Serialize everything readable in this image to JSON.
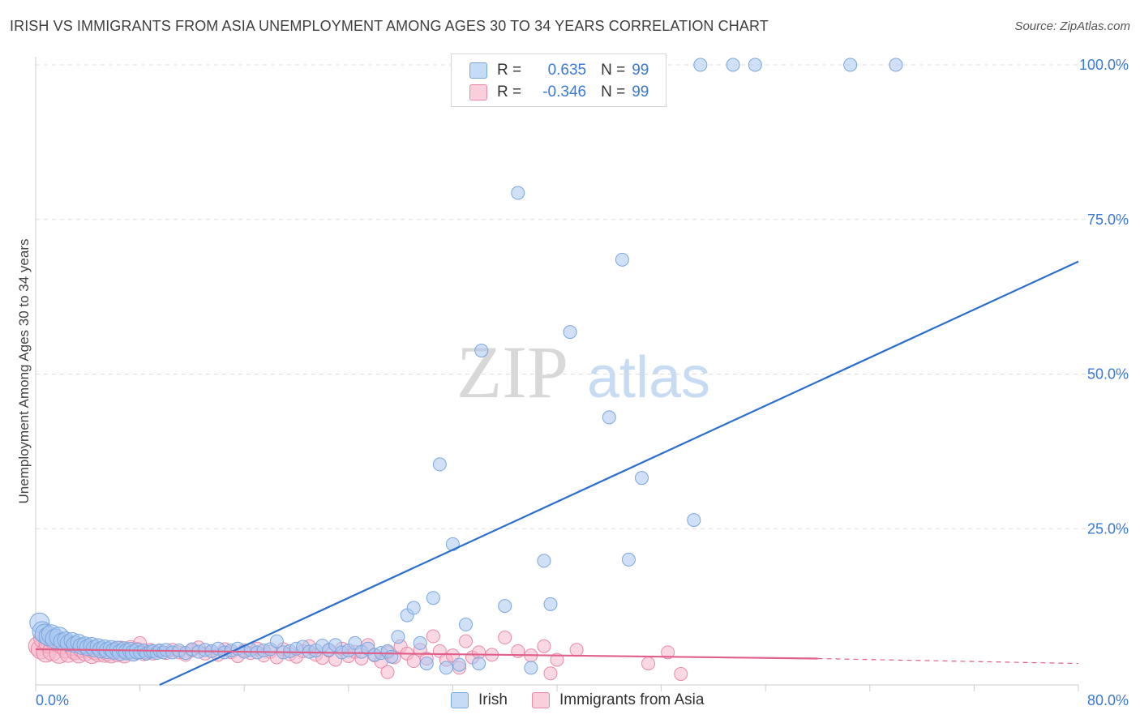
{
  "header": {
    "title": "IRISH VS IMMIGRANTS FROM ASIA UNEMPLOYMENT AMONG AGES 30 TO 34 YEARS CORRELATION CHART",
    "source": "Source: ZipAtlas.com"
  },
  "watermark": {
    "zip": "ZIP",
    "atlas": "atlas"
  },
  "legend": {
    "r_label": "R =",
    "n_label": "N =",
    "rows": [
      {
        "r": "0.635",
        "n": "99"
      },
      {
        "r": "-0.346",
        "n": "99"
      }
    ]
  },
  "colors": {
    "blue_fill": "#aac8f0",
    "blue_stroke": "#7aa6de",
    "blue_line": "#2a6fcf",
    "pink_fill": "#f6b8cc",
    "pink_stroke": "#e88aa8",
    "pink_line": "#e0608a",
    "tick_label": "#3a78d6",
    "grid": "#dddddd"
  },
  "chart_data": {
    "type": "scatter",
    "ylabel": "Unemployment Among Ages 30 to 34 years",
    "xlim": [
      0,
      80
    ],
    "ylim": [
      0,
      104
    ],
    "x_tick_labels": [
      {
        "value": 0,
        "label": "0.0%"
      },
      {
        "value": 80,
        "label": "80.0%"
      }
    ],
    "y_tick_labels": [
      {
        "value": 25,
        "label": "25.0%"
      },
      {
        "value": 50,
        "label": "50.0%"
      },
      {
        "value": 75,
        "label": "75.0%"
      },
      {
        "value": 100,
        "label": "100.0%"
      }
    ],
    "grid": true,
    "legend_position": "bottom",
    "series": [
      {
        "name": "Irish",
        "color": "#aac8f0",
        "r": 0.635,
        "n": 99,
        "trend": {
          "x": [
            0,
            80
          ],
          "y": [
            -9.5,
            68.2
          ]
        },
        "points": [
          [
            0.3,
            9.8
          ],
          [
            0.5,
            8.4
          ],
          [
            0.7,
            8.0
          ],
          [
            1.0,
            7.6
          ],
          [
            1.2,
            7.9
          ],
          [
            1.5,
            7.2
          ],
          [
            1.8,
            7.5
          ],
          [
            2.0,
            6.8
          ],
          [
            2.3,
            7.0
          ],
          [
            2.5,
            6.5
          ],
          [
            2.8,
            6.9
          ],
          [
            3.0,
            6.3
          ],
          [
            3.3,
            6.6
          ],
          [
            3.5,
            6.0
          ],
          [
            3.8,
            6.2
          ],
          [
            4.0,
            5.8
          ],
          [
            4.3,
            6.1
          ],
          [
            4.5,
            5.6
          ],
          [
            4.8,
            5.9
          ],
          [
            5.0,
            5.4
          ],
          [
            5.3,
            5.7
          ],
          [
            5.5,
            5.3
          ],
          [
            5.8,
            5.6
          ],
          [
            6.0,
            5.2
          ],
          [
            6.3,
            5.5
          ],
          [
            6.5,
            5.0
          ],
          [
            6.8,
            5.4
          ],
          [
            7.0,
            5.1
          ],
          [
            7.3,
            5.3
          ],
          [
            7.5,
            4.9
          ],
          [
            7.8,
            5.2
          ],
          [
            8.0,
            5.0
          ],
          [
            8.3,
            5.3
          ],
          [
            8.5,
            4.8
          ],
          [
            8.8,
            5.1
          ],
          [
            9.0,
            5.2
          ],
          [
            9.3,
            4.9
          ],
          [
            9.5,
            5.3
          ],
          [
            9.8,
            5.0
          ],
          [
            10.0,
            5.4
          ],
          [
            10.5,
            5.0
          ],
          [
            11.0,
            5.3
          ],
          [
            11.5,
            4.9
          ],
          [
            12.0,
            5.5
          ],
          [
            12.5,
            5.1
          ],
          [
            13.0,
            5.4
          ],
          [
            13.5,
            5.2
          ],
          [
            14.0,
            5.6
          ],
          [
            14.5,
            5.0
          ],
          [
            15.0,
            5.3
          ],
          [
            15.5,
            5.6
          ],
          [
            16.0,
            5.1
          ],
          [
            16.5,
            5.4
          ],
          [
            17.0,
            5.0
          ],
          [
            17.5,
            5.3
          ],
          [
            18.0,
            5.5
          ],
          [
            18.5,
            6.8
          ],
          [
            19.0,
            5.0
          ],
          [
            19.5,
            5.2
          ],
          [
            20.0,
            5.6
          ],
          [
            20.5,
            5.9
          ],
          [
            21.0,
            5.1
          ],
          [
            21.5,
            5.3
          ],
          [
            22.0,
            6.1
          ],
          [
            22.5,
            5.4
          ],
          [
            23.0,
            6.2
          ],
          [
            23.5,
            5.0
          ],
          [
            24.0,
            5.3
          ],
          [
            24.5,
            6.5
          ],
          [
            25.0,
            5.1
          ],
          [
            25.5,
            5.6
          ],
          [
            26.0,
            4.6
          ],
          [
            26.5,
            4.9
          ],
          [
            27.0,
            5.2
          ],
          [
            27.3,
            4.3
          ],
          [
            27.8,
            7.5
          ],
          [
            28.5,
            11.0
          ],
          [
            29.0,
            12.2
          ],
          [
            29.5,
            6.5
          ],
          [
            30.0,
            3.2
          ],
          [
            30.5,
            13.8
          ],
          [
            31.5,
            2.5
          ],
          [
            32.5,
            3.0
          ],
          [
            33.0,
            9.5
          ],
          [
            34.0,
            3.2
          ],
          [
            36.0,
            12.5
          ],
          [
            38.0,
            2.5
          ],
          [
            39.5,
            12.8
          ],
          [
            39.0,
            19.8
          ],
          [
            31.0,
            35.4
          ],
          [
            32.0,
            22.5
          ],
          [
            34.2,
            53.8
          ],
          [
            41.0,
            56.8
          ],
          [
            45.0,
            68.5
          ],
          [
            44.0,
            43.0
          ],
          [
            46.5,
            33.2
          ],
          [
            50.5,
            26.4
          ],
          [
            45.5,
            20.0
          ],
          [
            37.0,
            79.3
          ]
        ],
        "top_points": [
          [
            37.3,
            100
          ],
          [
            51.0,
            100
          ],
          [
            53.5,
            100
          ],
          [
            55.2,
            100
          ],
          [
            62.5,
            100
          ],
          [
            66.0,
            100
          ]
        ]
      },
      {
        "name": "Immigrants from Asia",
        "color": "#f6b8cc",
        "r": -0.346,
        "n": 99,
        "trend": {
          "x": [
            0,
            60
          ],
          "y": [
            5.5,
            4.0
          ]
        },
        "trend_dashed": {
          "x": [
            60,
            80
          ],
          "y": [
            4.0,
            3.2
          ]
        },
        "points": [
          [
            0.2,
            6.0
          ],
          [
            0.4,
            5.5
          ],
          [
            0.6,
            7.2
          ],
          [
            0.8,
            5.0
          ],
          [
            1.0,
            6.5
          ],
          [
            1.3,
            5.2
          ],
          [
            1.5,
            6.8
          ],
          [
            1.8,
            4.8
          ],
          [
            2.0,
            6.0
          ],
          [
            2.3,
            5.4
          ],
          [
            2.5,
            4.7
          ],
          [
            2.8,
            5.8
          ],
          [
            3.0,
            5.1
          ],
          [
            3.3,
            4.6
          ],
          [
            3.5,
            5.5
          ],
          [
            3.8,
            4.9
          ],
          [
            4.0,
            5.6
          ],
          [
            4.3,
            4.5
          ],
          [
            4.5,
            5.2
          ],
          [
            4.8,
            4.8
          ],
          [
            5.0,
            5.4
          ],
          [
            5.3,
            4.7
          ],
          [
            5.5,
            5.0
          ],
          [
            5.8,
            4.6
          ],
          [
            6.0,
            5.3
          ],
          [
            6.3,
            4.8
          ],
          [
            6.5,
            5.5
          ],
          [
            6.8,
            4.6
          ],
          [
            7.0,
            5.1
          ],
          [
            7.3,
            5.6
          ],
          [
            7.5,
            4.9
          ],
          [
            7.8,
            5.3
          ],
          [
            8.0,
            6.5
          ],
          [
            8.3,
            4.7
          ],
          [
            8.5,
            5.0
          ],
          [
            8.8,
            5.4
          ],
          [
            9.0,
            4.8
          ],
          [
            9.5,
            5.2
          ],
          [
            10.0,
            4.9
          ],
          [
            10.5,
            5.4
          ],
          [
            11.0,
            5.0
          ],
          [
            11.5,
            4.6
          ],
          [
            12.0,
            5.3
          ],
          [
            12.5,
            5.8
          ],
          [
            13.0,
            4.8
          ],
          [
            13.5,
            5.2
          ],
          [
            14.0,
            4.6
          ],
          [
            14.5,
            5.5
          ],
          [
            15.0,
            5.0
          ],
          [
            15.5,
            4.4
          ],
          [
            16.0,
            5.3
          ],
          [
            16.5,
            4.9
          ],
          [
            17.0,
            5.6
          ],
          [
            17.5,
            4.5
          ],
          [
            18.0,
            5.1
          ],
          [
            18.5,
            4.2
          ],
          [
            19.0,
            5.5
          ],
          [
            19.5,
            4.7
          ],
          [
            20.0,
            4.3
          ],
          [
            20.5,
            5.2
          ],
          [
            21.0,
            6.0
          ],
          [
            21.5,
            4.6
          ],
          [
            22.0,
            4.1
          ],
          [
            22.5,
            5.3
          ],
          [
            23.0,
            3.8
          ],
          [
            23.5,
            5.6
          ],
          [
            24.0,
            4.4
          ],
          [
            24.5,
            5.1
          ],
          [
            25.0,
            4.0
          ],
          [
            25.5,
            6.2
          ],
          [
            26.0,
            4.5
          ],
          [
            26.5,
            3.5
          ],
          [
            27.0,
            5.0
          ],
          [
            27.5,
            4.2
          ],
          [
            28.0,
            6.0
          ],
          [
            28.5,
            4.8
          ],
          [
            29.0,
            3.6
          ],
          [
            29.5,
            5.4
          ],
          [
            30.0,
            4.0
          ],
          [
            30.5,
            7.6
          ],
          [
            31.0,
            5.2
          ],
          [
            31.5,
            3.8
          ],
          [
            32.0,
            4.5
          ],
          [
            32.5,
            2.5
          ],
          [
            33.0,
            6.8
          ],
          [
            33.5,
            4.2
          ],
          [
            34.0,
            5.0
          ],
          [
            35.0,
            4.6
          ],
          [
            36.0,
            7.4
          ],
          [
            37.0,
            5.2
          ],
          [
            38.0,
            4.5
          ],
          [
            39.0,
            6.0
          ],
          [
            40.0,
            3.8
          ],
          [
            41.5,
            5.4
          ],
          [
            47.0,
            3.2
          ],
          [
            49.5,
            1.5
          ],
          [
            48.5,
            5.0
          ],
          [
            27.0,
            1.8
          ],
          [
            39.5,
            1.6
          ]
        ]
      }
    ]
  }
}
